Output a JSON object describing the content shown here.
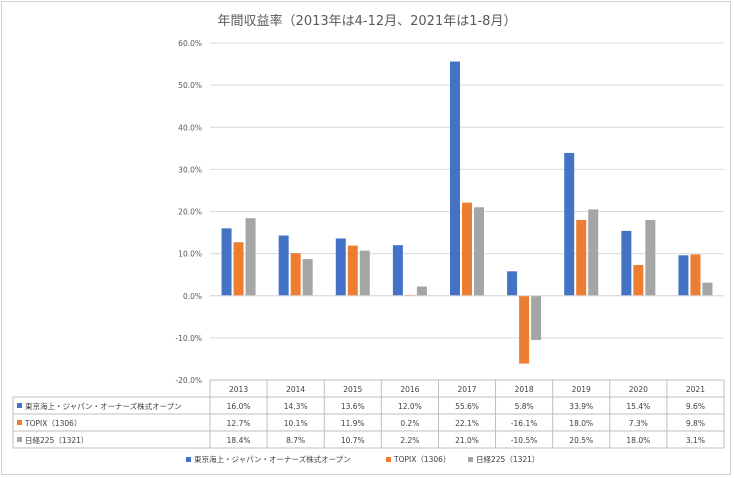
{
  "chart_data": {
    "type": "bar",
    "title": "年間収益率（2013年は4-12月、2021年は1-8月）",
    "categories": [
      "2013",
      "2014",
      "2015",
      "2016",
      "2017",
      "2018",
      "2019",
      "2020",
      "2021"
    ],
    "ylim": [
      -20,
      60
    ],
    "yticks": [
      "60.0%",
      "50.0%",
      "40.0%",
      "30.0%",
      "20.0%",
      "10.0%",
      "0.0%",
      "-10.0%",
      "-20.0%"
    ],
    "grid": true,
    "legend_position": "bottom",
    "series": [
      {
        "name": "東京海上・ジャパン・オーナーズ株式オープン",
        "color": "#4472c4",
        "values": [
          16.0,
          14.3,
          13.6,
          12.0,
          55.6,
          5.8,
          33.9,
          15.4,
          9.6
        ],
        "labels": [
          "16.0%",
          "14.3%",
          "13.6%",
          "12.0%",
          "55.6%",
          "5.8%",
          "33.9%",
          "15.4%",
          "9.6%"
        ]
      },
      {
        "name": "TOPIX（1306）",
        "color": "#ed7d31",
        "values": [
          12.7,
          10.1,
          11.9,
          0.2,
          22.1,
          -16.1,
          18.0,
          7.3,
          9.8
        ],
        "labels": [
          "12.7%",
          "10.1%",
          "11.9%",
          "0.2%",
          "22.1%",
          "-16.1%",
          "18.0%",
          "7.3%",
          "9.8%"
        ]
      },
      {
        "name": "日経225（1321）",
        "color": "#a5a5a5",
        "values": [
          18.4,
          8.7,
          10.7,
          2.2,
          21.0,
          -10.5,
          20.5,
          18.0,
          3.1
        ],
        "labels": [
          "18.4%",
          "8.7%",
          "10.7%",
          "2.2%",
          "21.0%",
          "-10.5%",
          "20.5%",
          "18.0%",
          "3.1%"
        ]
      }
    ]
  }
}
